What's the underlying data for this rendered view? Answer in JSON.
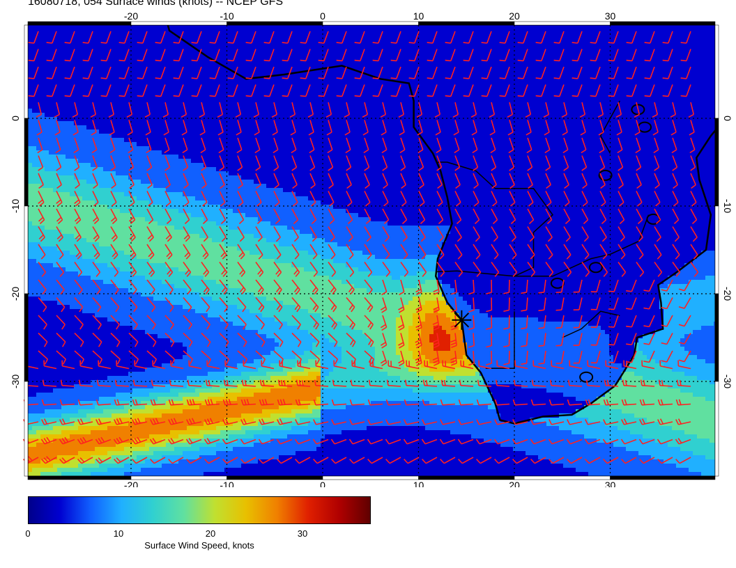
{
  "title": "16080718, 054 Surface winds (knots) -- NCEP GFS",
  "map": {
    "lon_range": [
      -30,
      42
    ],
    "lat_range": [
      -40,
      10
    ],
    "lon_ticks": [
      "-20",
      "-10",
      "0",
      "10",
      "20",
      "30"
    ],
    "lat_ticks": [
      "0",
      "-10",
      "-20",
      "-30"
    ],
    "grid": "dotted every 10 degrees",
    "barb_color": "#ff2020",
    "coast_color": "#000000",
    "marker": {
      "symbol": "star-cross",
      "lon": 14.5,
      "lat": -23.0
    },
    "field": "Surface Wind Speed"
  },
  "colorbar": {
    "label": "Surface Wind Speed, knots",
    "ticks": [
      "0",
      "10",
      "20",
      "30"
    ],
    "range": [
      0,
      36
    ],
    "stops": [
      "#00008b",
      "#0000d0",
      "#1060ff",
      "#20b0ff",
      "#30d0d0",
      "#60e0a0",
      "#c0e030",
      "#e8c000",
      "#f08000",
      "#e02000",
      "#b00000",
      "#600000"
    ]
  }
}
